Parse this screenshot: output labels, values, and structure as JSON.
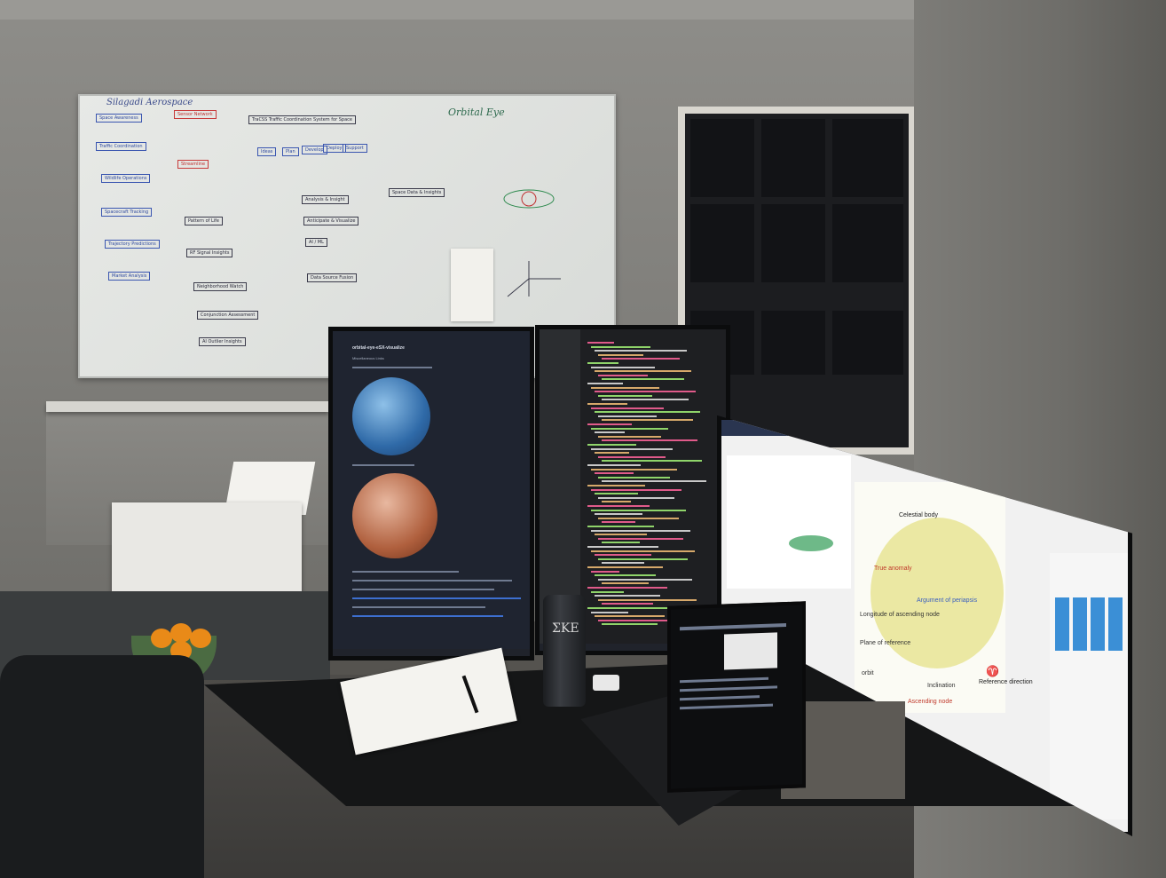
{
  "whiteboard": {
    "title": "Silagadi Aerospace",
    "subtitle": "Orbital Eye",
    "header_text": "TraCSS Traffic Coordination System for Space",
    "boxes": [
      "Sensor Network",
      "Space Awareness",
      "Traffic Coordination",
      "Wildlife Operations",
      "Spacecraft Tracking",
      "Trajectory Predictions",
      "Market Analysis",
      "Streamline",
      "Pattern of Life",
      "RF Signal Insights",
      "Neighborhood Watch",
      "Conjunction Assessment",
      "AI Outlier Insights",
      "Ideas",
      "Plan",
      "Develop",
      "Deploy",
      "Support",
      "Analysis & Insight",
      "Anticipate & Visualize",
      "AI / ML",
      "Data Source Fusion",
      "Space Data & Insights"
    ]
  },
  "monitor_left": {
    "title": "orbital-eye-eSX-visualize",
    "section": "Miscellaneous Links"
  },
  "monitor_right": {
    "diagram_labels": {
      "celestial_body": "Celestial body",
      "true_anomaly": "True anomaly",
      "argument_of_periapsis": "Argument of periapsis",
      "longitude_of_ascending_node": "Longitude of ascending node",
      "plane_of_reference": "Plane of reference",
      "orbit": "orbit",
      "inclination": "Inclination",
      "ascending_node": "Ascending node",
      "reference_direction": "Reference direction",
      "reference_symbol": "♈"
    }
  },
  "mug": {
    "text": "ΣKE"
  },
  "colors": {
    "whiteboard_blue": "#2f4aa0",
    "whiteboard_red": "#c03030",
    "code_green": "#8fd46a",
    "code_pink": "#e05a8a",
    "orbit_ellipse": "#e9e69a"
  }
}
